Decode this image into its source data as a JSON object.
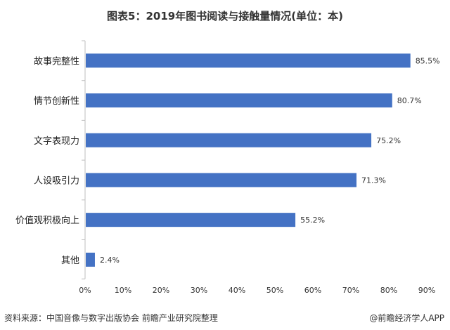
{
  "chart_data": {
    "type": "bar",
    "orientation": "horizontal",
    "title": "图表5：2019年图书阅读与接触量情况(单位：本)",
    "categories": [
      "故事完整性",
      "情节创新性",
      "文字表现力",
      "人设吸引力",
      "价值观积极向上",
      "其他"
    ],
    "values": [
      85.5,
      80.7,
      75.2,
      71.3,
      55.2,
      2.4
    ],
    "value_labels": [
      "85.5%",
      "80.7%",
      "75.2%",
      "71.3%",
      "55.2%",
      "2.4%"
    ],
    "xlim": [
      0,
      90
    ],
    "x_ticks": [
      "0%",
      "10%",
      "20%",
      "30%",
      "40%",
      "50%",
      "60%",
      "70%",
      "80%",
      "90%"
    ],
    "xlabel": "",
    "ylabel": "",
    "grid": false,
    "legend": "none",
    "bar_color": "#4472C4"
  },
  "footer": {
    "source": "资料来源：中国音像与数字出版协会 前瞻产业研究院整理",
    "credit": "@前瞻经济学人APP"
  }
}
